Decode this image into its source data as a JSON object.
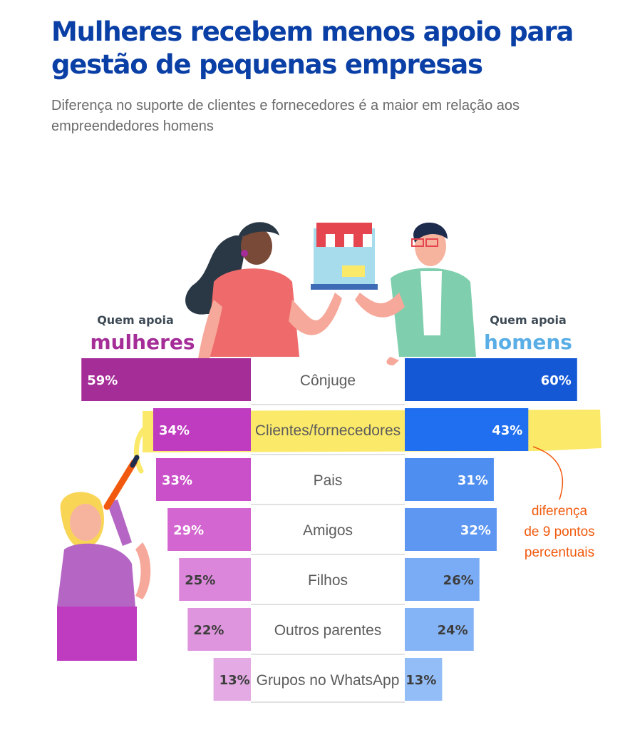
{
  "header": {
    "title": "Mulheres recebem menos apoio para gestão de pequenas empresas",
    "subtitle": "Diferença no suporte de clientes e fornecedores é a maior em relação aos empreendedores homens"
  },
  "legend": {
    "women_small": "Quem apoia",
    "women_big": "mulheres",
    "men_small": "Quem apoia",
    "men_big": "homens"
  },
  "annotation": {
    "line1": "diferença",
    "line2": "de 9 pontos",
    "line3": "percentuais"
  },
  "colors": {
    "title": "#0a3fa6",
    "women": [
      "#a52d97",
      "#bf3cc0",
      "#ca50c9",
      "#d366d0",
      "#db86da",
      "#de95dd",
      "#e3aae3"
    ],
    "men": [
      "#1558d6",
      "#1f6ff0",
      "#4e8ef0",
      "#5d97f2",
      "#7aacf5",
      "#85b4f6",
      "#93bdf7"
    ],
    "highlight": "#fbe96a",
    "annotation": "#f15a0e"
  },
  "chart_data": {
    "type": "bar",
    "categories": [
      "Cônjuge",
      "Clientes/fornecedores",
      "Pais",
      "Amigos",
      "Filhos",
      "Outros parentes",
      "Grupos no WhatsApp"
    ],
    "series": [
      {
        "name": "mulheres",
        "values": [
          59,
          34,
          33,
          29,
          25,
          22,
          13
        ]
      },
      {
        "name": "homens",
        "values": [
          60,
          43,
          31,
          32,
          26,
          24,
          13
        ]
      }
    ],
    "labels_women": [
      "59%",
      "34%",
      "33%",
      "29%",
      "25%",
      "22%",
      "13%"
    ],
    "labels_men": [
      "60%",
      "43%",
      "31%",
      "32%",
      "26%",
      "24%",
      "13%"
    ],
    "highlight_category": "Clientes/fornecedores",
    "orientation": "horizontal-butterfly"
  }
}
